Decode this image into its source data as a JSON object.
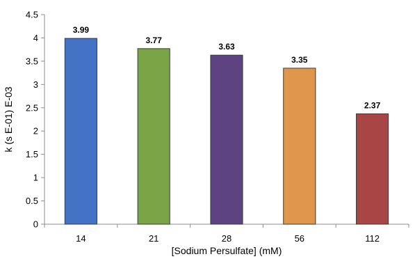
{
  "chart_data": {
    "type": "bar",
    "categories": [
      "14",
      "21",
      "28",
      "56",
      "112"
    ],
    "values": [
      3.99,
      3.77,
      3.63,
      3.35,
      2.37
    ],
    "data_labels": [
      "3.99",
      "3.77",
      "3.63",
      "3.35",
      "2.37"
    ],
    "colors": [
      "#4472c4",
      "#7aa547",
      "#5e4383",
      "#e0964b",
      "#a84545"
    ],
    "title": "",
    "xlabel": "[Sodium Persulfate] (mM)",
    "ylabel": "k (s E-01) E-03",
    "ylim": [
      0,
      4.5
    ],
    "yticks": [
      "0",
      "0.5",
      "1",
      "1.5",
      "2",
      "2.5",
      "3",
      "3.5",
      "4",
      "4.5"
    ],
    "grid": false,
    "legend": "none"
  }
}
